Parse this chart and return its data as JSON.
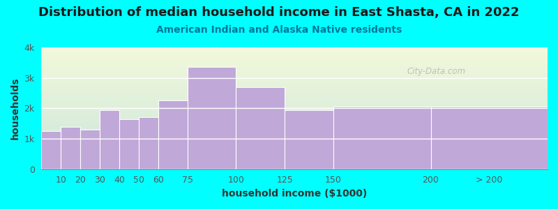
{
  "title": "Distribution of median household income in East Shasta, CA in 2022",
  "subtitle": "American Indian and Alaska Native residents",
  "xlabel": "household income ($1000)",
  "ylabel": "households",
  "background_color": "#00FFFF",
  "bar_color": "#c0a8d8",
  "bar_edge_color": "#ffffff",
  "categories": [
    "10",
    "20",
    "30",
    "40",
    "50",
    "60",
    "75",
    "100",
    "125",
    "150",
    "200",
    "> 200"
  ],
  "values": [
    1250,
    1400,
    1300,
    1950,
    1650,
    1700,
    2250,
    3350,
    2700,
    1950,
    2050,
    2050
  ],
  "bin_lefts": [
    0,
    10,
    20,
    30,
    40,
    50,
    60,
    75,
    100,
    125,
    150,
    200
  ],
  "bin_rights": [
    10,
    20,
    30,
    40,
    50,
    60,
    75,
    100,
    125,
    150,
    200,
    260
  ],
  "tick_positions": [
    10,
    20,
    30,
    40,
    50,
    60,
    75,
    100,
    125,
    150,
    200,
    230
  ],
  "ylim": [
    0,
    4000
  ],
  "yticks": [
    0,
    1000,
    2000,
    3000,
    4000
  ],
  "ytick_labels": [
    "0",
    "1k",
    "2k",
    "3k",
    "4k"
  ],
  "title_fontsize": 13,
  "subtitle_fontsize": 10,
  "axis_label_fontsize": 10,
  "tick_fontsize": 9,
  "watermark_text": "City-Data.com",
  "title_color": "#1a1a1a",
  "subtitle_color": "#007799",
  "axis_label_color": "#333333",
  "tick_color": "#555555"
}
